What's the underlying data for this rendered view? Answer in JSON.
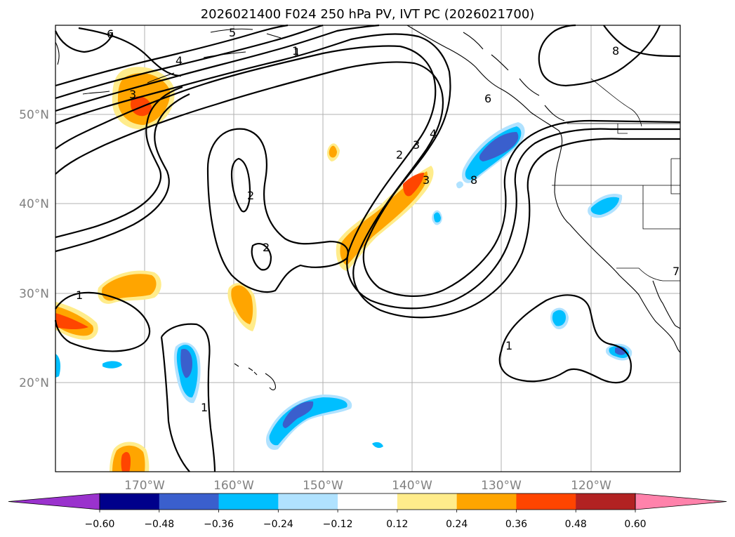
{
  "title": "2026021400 F024 250 hPa PV, IVT PC (2026021700)",
  "map": {
    "lon_ticks": [
      "170°W",
      "160°W",
      "150°W",
      "140°W",
      "130°W",
      "120°W"
    ],
    "lat_ticks": [
      "50°N",
      "40°N",
      "30°N",
      "20°N"
    ],
    "extent": {
      "lon_min": -180,
      "lon_max": -110,
      "lat_min": 10,
      "lat_max": 60
    }
  },
  "contour_labels": [
    "6",
    "5",
    "1",
    "4",
    "3",
    "2",
    "1",
    "2",
    "3",
    "4",
    "2",
    "3",
    "8",
    "1",
    "6",
    "8",
    "1",
    "1",
    "7"
  ],
  "colorbar": {
    "ticks": [
      "−0.60",
      "−0.48",
      "−0.36",
      "−0.24",
      "−0.12",
      "0.12",
      "0.24",
      "0.36",
      "0.48",
      "0.60"
    ],
    "colors": [
      "#9a32cd",
      "#00008b",
      "#3a5fcd",
      "#00bfff",
      "#b0e2ff",
      "#ffffff",
      "#ffec8b",
      "#ffa500",
      "#ff4500",
      "#b22222",
      "#ff82ab"
    ]
  }
}
